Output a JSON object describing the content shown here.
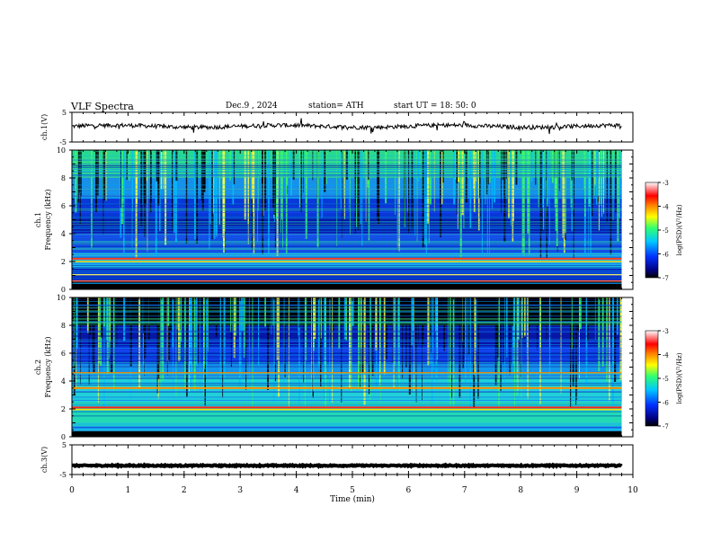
{
  "header": {
    "title": "VLF  Spectra",
    "date": "Dec.9  , 2024",
    "station": "station= ATH",
    "start": "start  UT  =   18: 50: 0"
  },
  "chart_data": [
    {
      "type": "line",
      "id": "ch1-time-series",
      "ylabel": "ch.1(V)",
      "ylim": [
        -5,
        5
      ],
      "yticks": [
        -5,
        5
      ],
      "xlim": [
        0,
        10
      ],
      "series_description": "noisy waveform fluctuating around 0.3 V",
      "approx_level": 0.3
    },
    {
      "type": "heatmap",
      "id": "ch1-spectrogram",
      "ylabel": "ch.1\nFrequency  (kHz)",
      "ylim": [
        0,
        10
      ],
      "yticks": [
        0,
        2,
        4,
        6,
        8,
        10
      ],
      "xlim": [
        0,
        9.8
      ],
      "colorbar": {
        "label": "log(PSD)(V²/Hz)",
        "range": [
          -7,
          -3
        ],
        "ticks": [
          "-3",
          "-4",
          "-5",
          "-6",
          "-7"
        ]
      }
    },
    {
      "type": "heatmap",
      "id": "ch2-spectrogram",
      "ylabel": "ch.2\nFrequency  (kHz)",
      "ylim": [
        0,
        10
      ],
      "yticks": [
        0,
        2,
        4,
        6,
        8,
        10
      ],
      "xlim": [
        0,
        9.8
      ],
      "colorbar": {
        "label": "log(PSD)(V²/Hz)",
        "range": [
          -7,
          -3
        ],
        "ticks": [
          "-3",
          "-4",
          "-5",
          "-6",
          "-7"
        ]
      }
    },
    {
      "type": "line",
      "id": "ch3-time-series",
      "ylabel": "ch.3(V)",
      "ylim": [
        -5,
        5
      ],
      "yticks": [
        -5,
        5
      ],
      "xlim": [
        0,
        10
      ],
      "approx_level": -2
    }
  ],
  "xaxis": {
    "label": "Time  (min)",
    "ticks": [
      "0",
      "1",
      "2",
      "3",
      "4",
      "5",
      "6",
      "7",
      "8",
      "9",
      "10"
    ]
  },
  "colors": {
    "frame": "#000000",
    "colormap": [
      "#000000",
      "#0000a0",
      "#0060ff",
      "#00d8ff",
      "#30ff80",
      "#ffff00",
      "#ff8000",
      "#ff0000",
      "#ffffff"
    ]
  }
}
